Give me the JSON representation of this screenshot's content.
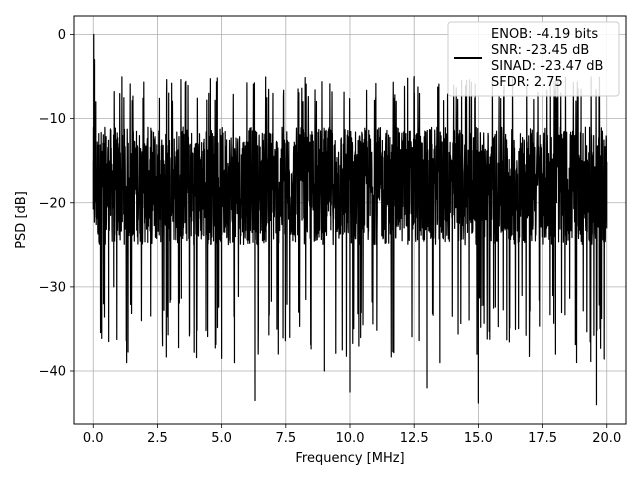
{
  "chart_data": {
    "type": "line",
    "title": "",
    "xlabel": "Frequency [MHz]",
    "ylabel": "PSD [dB]",
    "xlim": [
      -0.75,
      20.75
    ],
    "ylim": [
      -46.3,
      2.2
    ],
    "xticks": [
      0.0,
      2.5,
      5.0,
      7.5,
      10.0,
      12.5,
      15.0,
      17.5,
      20.0
    ],
    "xtick_labels": [
      "0.0",
      "2.5",
      "5.0",
      "7.5",
      "10.0",
      "12.5",
      "15.0",
      "17.5",
      "20.0"
    ],
    "yticks": [
      0,
      -10,
      -20,
      -30,
      -40
    ],
    "ytick_labels": [
      "0",
      "−10",
      "−20",
      "−30",
      "−40"
    ],
    "grid": true,
    "line_color": "#000000",
    "legend": {
      "location": "top-right",
      "entries": [
        "ENOB: -4.19 bits",
        "SNR: -23.45 dB",
        "SINAD: -23.47 dB",
        "SFDR: 2.75"
      ]
    },
    "series": [
      {
        "x_start": 0.0,
        "x_end": 20.0,
        "y_range": [
          -44.0,
          0.0
        ],
        "typical_band": [
          -28,
          -8
        ],
        "y_sample": [
          [
            0.0,
            -15.0
          ],
          [
            0.02,
            0.0
          ],
          [
            0.05,
            -3.0
          ],
          [
            0.1,
            -8.0
          ],
          [
            0.2,
            -22.0
          ],
          [
            0.4,
            -32.0
          ],
          [
            0.6,
            -36.5
          ],
          [
            0.8,
            -30.0
          ],
          [
            1.3,
            -39.0
          ],
          [
            2.0,
            -13.0
          ],
          [
            2.7,
            -37.0
          ],
          [
            3.5,
            -11.0
          ],
          [
            4.5,
            -7.0
          ],
          [
            5.0,
            -38.5
          ],
          [
            5.5,
            -39.0
          ],
          [
            6.3,
            -43.5
          ],
          [
            7.0,
            -7.0
          ],
          [
            8.0,
            -33.0
          ],
          [
            9.0,
            -40.0
          ],
          [
            10.0,
            -42.5
          ],
          [
            11.0,
            -7.5
          ],
          [
            12.5,
            -5.0
          ],
          [
            13.0,
            -42.0
          ],
          [
            13.5,
            -39.0
          ],
          [
            14.5,
            -6.5
          ],
          [
            15.0,
            -43.8
          ],
          [
            16.0,
            -6.0
          ],
          [
            17.0,
            -34.0
          ],
          [
            18.0,
            -38.0
          ],
          [
            19.0,
            -6.5
          ],
          [
            19.6,
            -44.0
          ],
          [
            20.0,
            -23.0
          ]
        ]
      }
    ]
  }
}
